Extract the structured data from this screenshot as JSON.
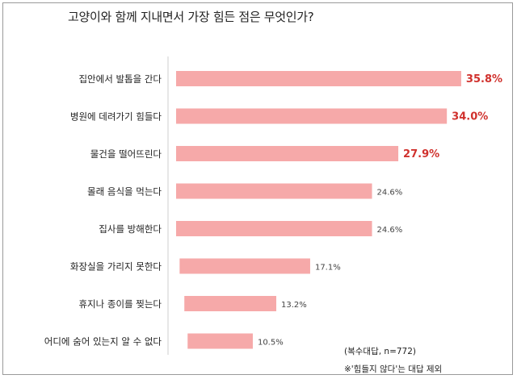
{
  "chart_data": {
    "type": "bar",
    "orientation": "horizontal",
    "title": "고양이와 함께 지내면서 가장 힘든 점은 무엇인가?",
    "categories": [
      "집안에서 발톱을 간다",
      "병원에 데려가기 힘들다",
      "물건을 떨어뜨린다",
      "몰래 음식을 먹는다",
      "집사를 방해한다",
      "화장실을 가리지 못한다",
      "휴지나 종이를 찢는다",
      "어디에 숨어 있는지 알 수 없다"
    ],
    "values": [
      35.8,
      34.0,
      27.9,
      24.6,
      24.6,
      17.1,
      13.2,
      10.5
    ],
    "value_labels": [
      "35.8%",
      "34.0%",
      "27.9%",
      "24.6%",
      "24.6%",
      "17.1%",
      "13.2%",
      "10.5%"
    ],
    "bar_color": "#f6a9a9",
    "highlight_color": "#d0312d",
    "label_color": "#444444",
    "highlighted_top": 3,
    "notes": [
      "(복수대답, n=772)",
      "※'힘들지 않다'는 대답 제외"
    ]
  }
}
